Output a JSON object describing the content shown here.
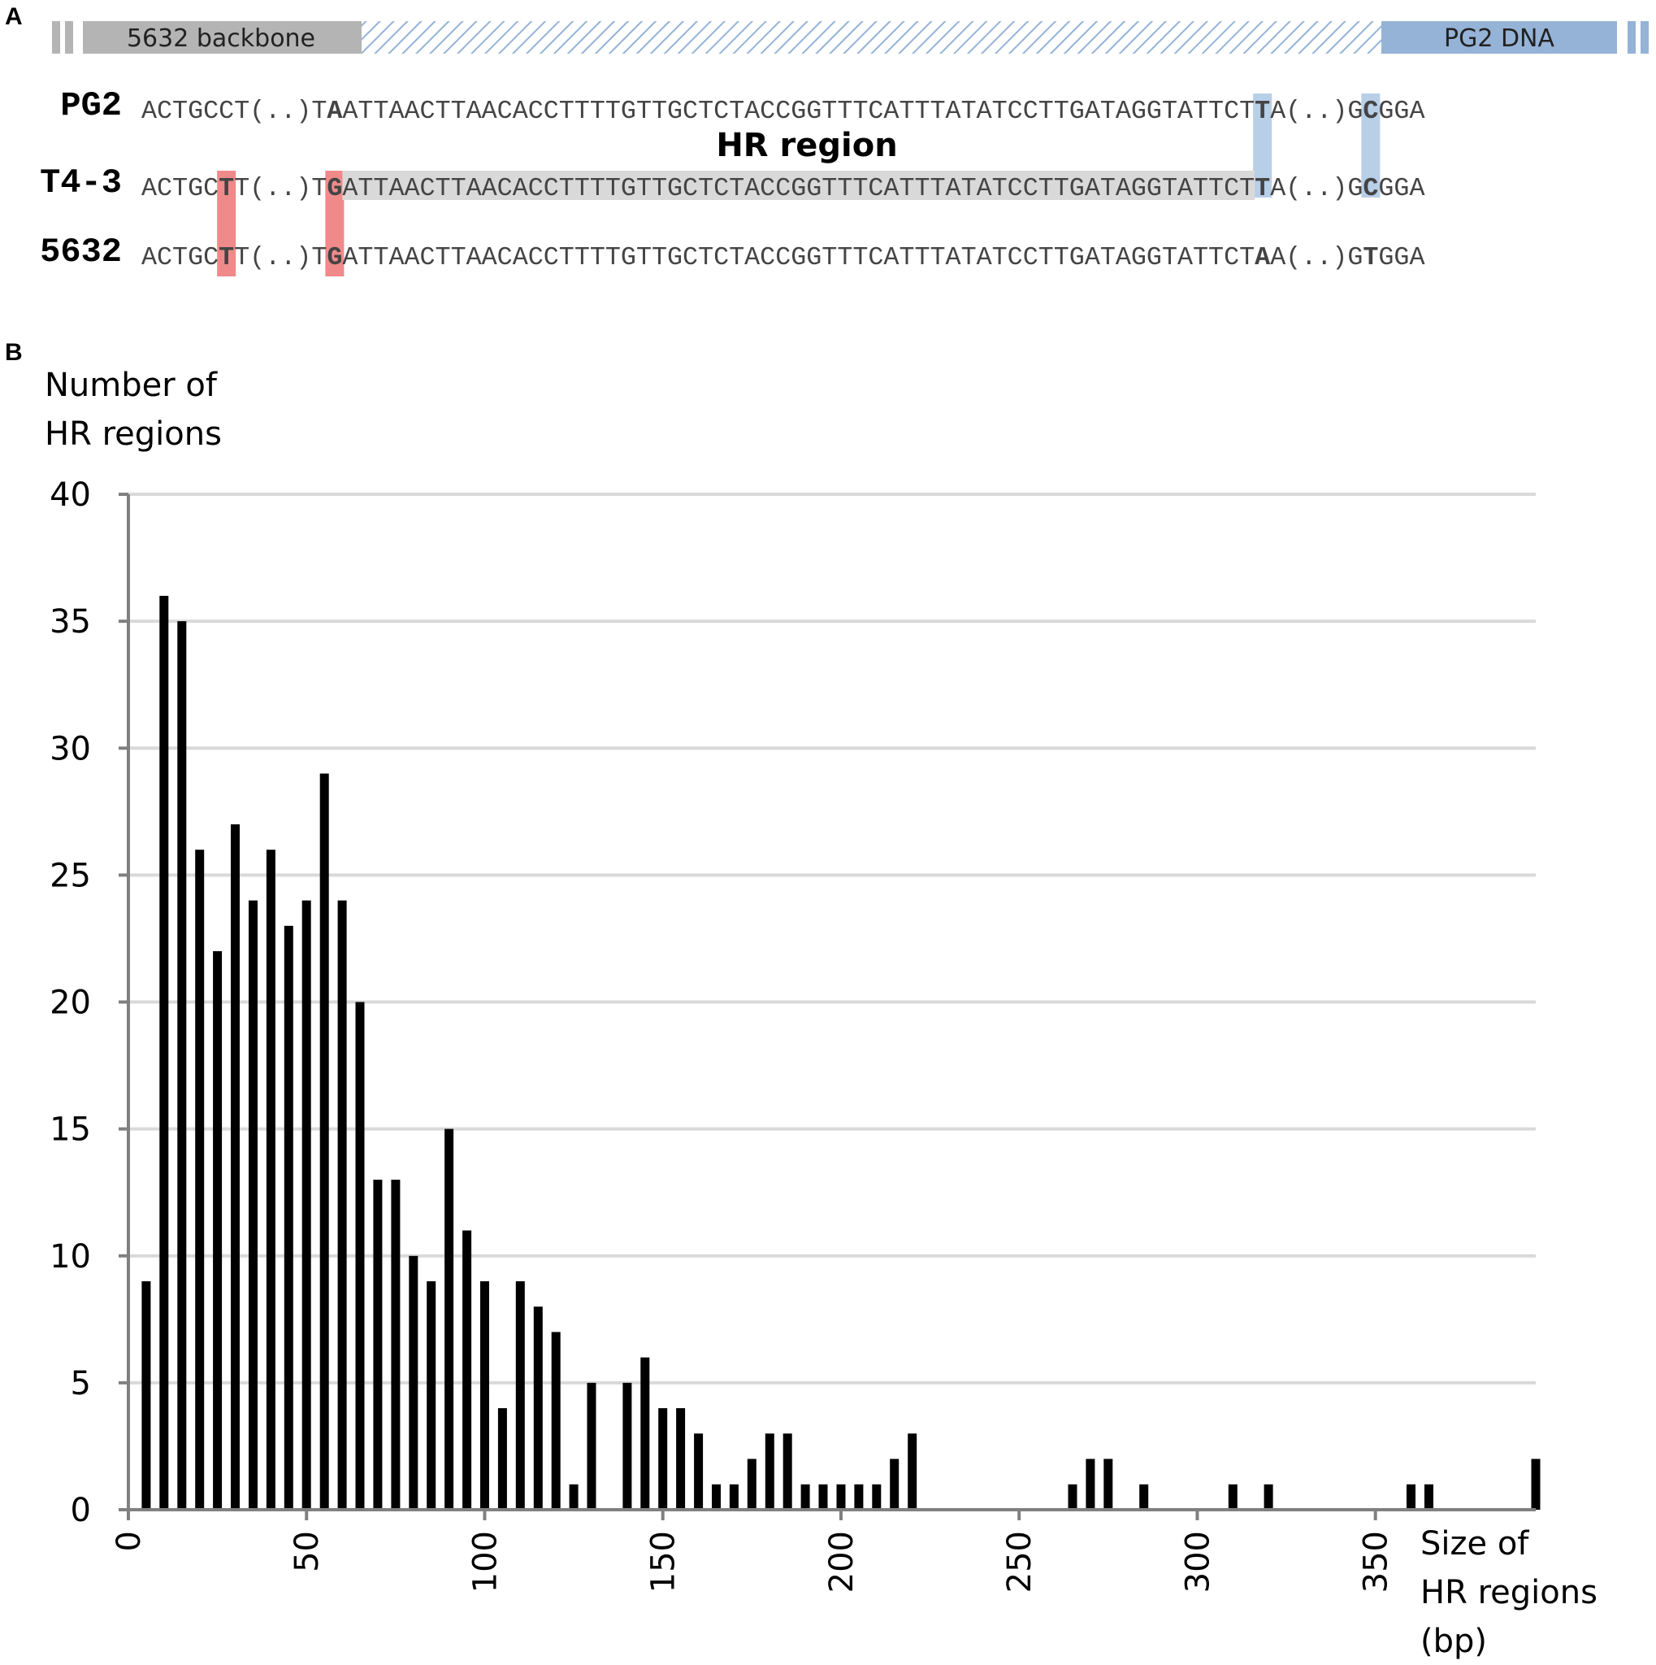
{
  "panel_a": {
    "letter": "A",
    "bar": {
      "backbone_label": "5632 backbone",
      "pg2_label": "PG2 DNA",
      "colors": {
        "backbone": "#b4b4b4",
        "pg2": "#95b3d7",
        "hatch": "#95b3d7"
      }
    },
    "hr_label": "HR region",
    "highlight_colors": {
      "blue": "#b8cfe8",
      "red": "#f08a8a",
      "hr_shade": "#d9d9d9"
    },
    "text_colors": {
      "blue": "#1f9fd9",
      "red": "#e01010",
      "base": "#444444"
    },
    "sequences": [
      {
        "name": "PG2",
        "segments": [
          {
            "text": "ACTGCC",
            "mark": ""
          },
          {
            "text": "T",
            "mark": ""
          },
          {
            "text": "(..)",
            "mark": ""
          },
          {
            "text": "T",
            "mark": ""
          },
          {
            "text": "A",
            "mark": "blue"
          },
          {
            "text": "ATTAACTTAACACCTTTTGTTGCTCTACCGGTTTCATTTATATCCTTGATAGGTATTCT",
            "mark": ""
          },
          {
            "text": "T",
            "mark": "blue-box"
          },
          {
            "text": "A",
            "mark": ""
          },
          {
            "text": "(..)",
            "mark": ""
          },
          {
            "text": "G",
            "mark": ""
          },
          {
            "text": "C",
            "mark": "blue-box"
          },
          {
            "text": "GGA",
            "mark": ""
          }
        ]
      },
      {
        "name": "T4-3",
        "segments": [
          {
            "text": "ACTGC",
            "mark": ""
          },
          {
            "text": "T",
            "mark": "red-box"
          },
          {
            "text": "T",
            "mark": ""
          },
          {
            "text": "(..)",
            "mark": ""
          },
          {
            "text": "T",
            "mark": ""
          },
          {
            "text": "G",
            "mark": "red-box"
          },
          {
            "text": "ATTAACTTAACACCTTTTGTTGCTCTACCGGTTTCATTTATATCCTTGATAGGTATTCT",
            "mark": "hr"
          },
          {
            "text": "T",
            "mark": "blue-box"
          },
          {
            "text": "A",
            "mark": ""
          },
          {
            "text": "(..)",
            "mark": ""
          },
          {
            "text": "G",
            "mark": ""
          },
          {
            "text": "C",
            "mark": "blue-box"
          },
          {
            "text": "GGA",
            "mark": ""
          }
        ]
      },
      {
        "name": "5632",
        "segments": [
          {
            "text": "ACTGC",
            "mark": ""
          },
          {
            "text": "T",
            "mark": "red-box"
          },
          {
            "text": "T",
            "mark": ""
          },
          {
            "text": "(..)",
            "mark": ""
          },
          {
            "text": "T",
            "mark": ""
          },
          {
            "text": "G",
            "mark": "red-box"
          },
          {
            "text": "ATTAACTTAACACCTTTTGTTGCTCTACCGGTTTCATTTATATCCTTGATAGGTATTCT",
            "mark": ""
          },
          {
            "text": "A",
            "mark": "red"
          },
          {
            "text": "A",
            "mark": ""
          },
          {
            "text": "(..)",
            "mark": ""
          },
          {
            "text": "G",
            "mark": ""
          },
          {
            "text": "T",
            "mark": "red"
          },
          {
            "text": "GGA",
            "mark": ""
          }
        ]
      }
    ]
  },
  "chart_data": {
    "panel_letter": "B",
    "type": "bar",
    "title": "",
    "ylabel_lines": [
      "Number of",
      "HR regions"
    ],
    "xlabel_lines": [
      "Size of",
      "HR regions",
      "(bp)"
    ],
    "x": [
      5,
      10,
      15,
      20,
      25,
      30,
      35,
      40,
      45,
      50,
      55,
      60,
      65,
      70,
      75,
      80,
      85,
      90,
      95,
      100,
      105,
      110,
      115,
      120,
      125,
      130,
      135,
      140,
      145,
      150,
      155,
      160,
      165,
      170,
      175,
      180,
      185,
      190,
      195,
      200,
      205,
      210,
      215,
      220,
      225,
      230,
      235,
      240,
      245,
      250,
      255,
      260,
      265,
      270,
      275,
      280,
      285,
      290,
      295,
      300,
      305,
      310,
      315,
      320,
      325,
      330,
      335,
      340,
      345,
      350,
      355,
      360,
      365,
      370,
      375,
      380,
      385,
      390,
      395
    ],
    "values": [
      9,
      36,
      35,
      26,
      22,
      27,
      24,
      26,
      23,
      24,
      29,
      24,
      20,
      13,
      13,
      10,
      9,
      15,
      11,
      9,
      4,
      9,
      8,
      7,
      1,
      5,
      0,
      5,
      6,
      4,
      4,
      3,
      1,
      1,
      2,
      3,
      3,
      1,
      1,
      1,
      1,
      1,
      2,
      3,
      0,
      0,
      0,
      0,
      0,
      0,
      0,
      0,
      1,
      2,
      2,
      0,
      1,
      0,
      0,
      0,
      0,
      1,
      0,
      1,
      0,
      0,
      0,
      0,
      0,
      0,
      0,
      1,
      1,
      0,
      0,
      0,
      0,
      0,
      2
    ],
    "xlim": [
      0,
      395
    ],
    "ylim": [
      0,
      40
    ],
    "xticks": [
      0,
      50,
      100,
      150,
      200,
      250,
      300,
      350
    ],
    "yticks": [
      0,
      5,
      10,
      15,
      20,
      25,
      30,
      35,
      40
    ],
    "grid": true,
    "bar_color": "#000000",
    "grid_color": "#d9d9d9",
    "axis_color": "#808080"
  }
}
